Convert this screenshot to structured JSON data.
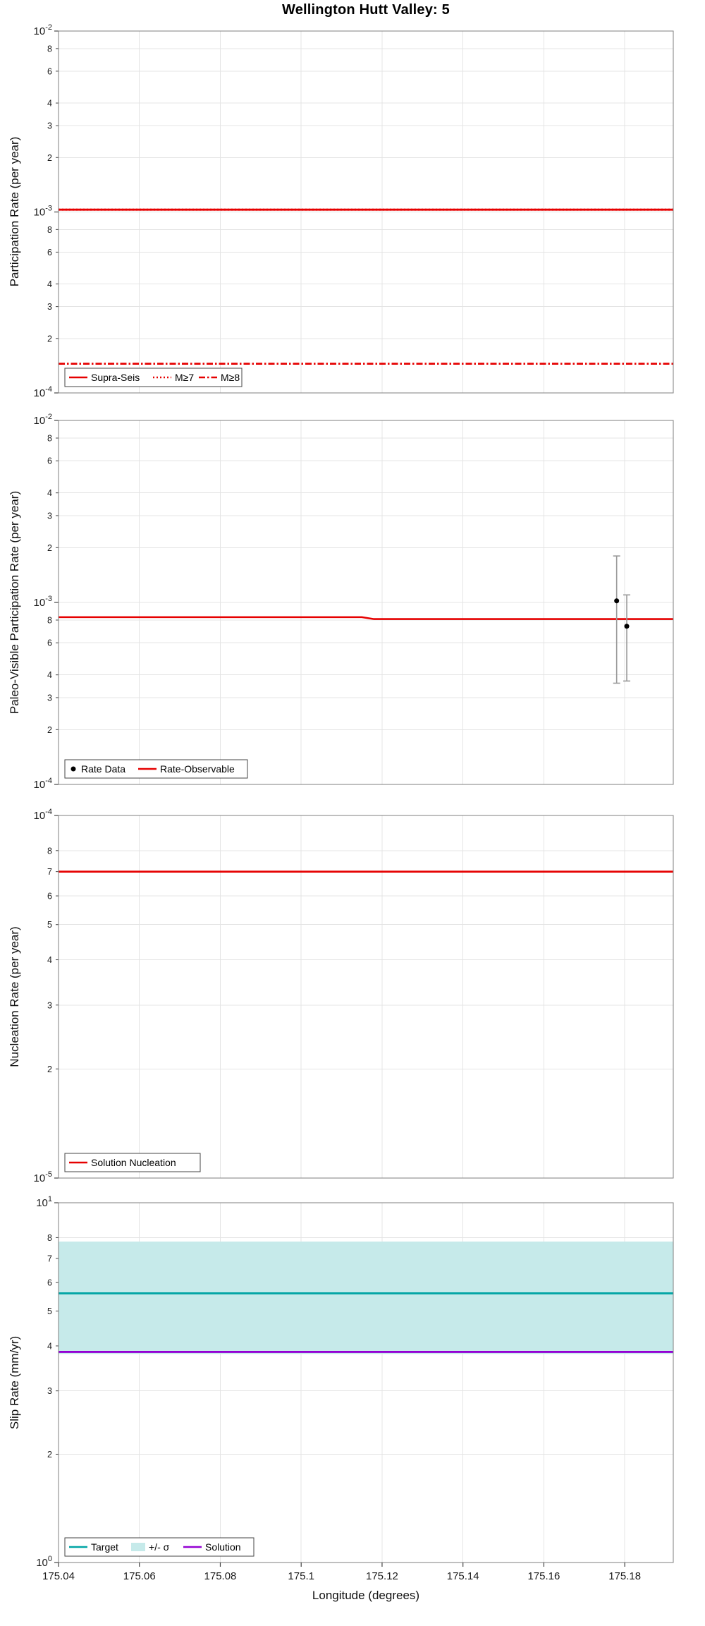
{
  "title": "Wellington Hutt Valley: 5",
  "xlabel": "Longitude (degrees)",
  "x_range": [
    175.04,
    175.192
  ],
  "x_ticks": [
    175.04,
    175.06,
    175.08,
    175.1,
    175.12,
    175.14,
    175.16,
    175.18
  ],
  "x_tick_labels": [
    "175.04",
    "175.06",
    "175.08",
    "175.1",
    "175.12",
    "175.14",
    "175.16",
    "175.18"
  ],
  "colors": {
    "red": "#e60000",
    "teal": "#00a5a5",
    "teal_band": "#c6eaea",
    "purple": "#9400d3",
    "black": "#000000",
    "gray": "#9a9a9a",
    "grid": "#e4e4e4",
    "axis": "#7f7f7f",
    "text": "#1a1a1a"
  },
  "chart_data": [
    {
      "type": "line",
      "ylabel": "Participation Rate (per year)",
      "y_log_range": [
        -4,
        -2
      ],
      "y_minor_ticks": [
        8,
        6,
        4,
        3,
        2
      ],
      "series": [
        {
          "name": "Supra-Seis",
          "color": "red",
          "dash": "solid",
          "value": 0.00103
        },
        {
          "name": "M≥7",
          "color": "red",
          "dash": "dotted",
          "value": 0.00103
        },
        {
          "name": "M≥8",
          "color": "red",
          "dash": "dashdot",
          "value": 0.000145
        }
      ],
      "legend": [
        {
          "label": "Supra-Seis",
          "swatch": "line",
          "color": "red",
          "dash": "solid"
        },
        {
          "label": "M≥7",
          "swatch": "line",
          "color": "red",
          "dash": "dotted"
        },
        {
          "label": "M≥8",
          "swatch": "line",
          "color": "red",
          "dash": "dashdot"
        }
      ]
    },
    {
      "type": "line+scatter",
      "ylabel": "Paleo-Visible Participation Rate (per year)",
      "y_log_range": [
        -4,
        -2
      ],
      "y_minor_ticks": [
        8,
        6,
        4,
        3,
        2
      ],
      "line_series": [
        {
          "name": "Rate-Observable",
          "color": "red",
          "dash": "solid",
          "points": [
            [
              175.04,
              0.00083
            ],
            [
              175.115,
              0.00083
            ],
            [
              175.118,
              0.00081
            ],
            [
              175.192,
              0.00081
            ]
          ]
        }
      ],
      "markers": [
        {
          "name": "Rate Data",
          "x": 175.178,
          "y": 0.00102,
          "y_lo": 0.00036,
          "y_hi": 0.0018
        },
        {
          "name": "Rate Data",
          "x": 175.1805,
          "y": 0.00074,
          "y_lo": 0.00037,
          "y_hi": 0.0011
        }
      ],
      "legend": [
        {
          "label": "Rate Data",
          "swatch": "marker",
          "color": "black"
        },
        {
          "label": "Rate-Observable",
          "swatch": "line",
          "color": "red",
          "dash": "solid"
        }
      ]
    },
    {
      "type": "line",
      "ylabel": "Nucleation Rate (per year)",
      "y_log_range": [
        -5,
        -4
      ],
      "y_minor_ticks": [
        8,
        7,
        6,
        5,
        4,
        3,
        2
      ],
      "series": [
        {
          "name": "Solution Nucleation",
          "color": "red",
          "dash": "solid",
          "value": 7e-05
        }
      ],
      "legend": [
        {
          "label": "Solution Nucleation",
          "swatch": "line",
          "color": "red",
          "dash": "solid"
        }
      ]
    },
    {
      "type": "line+band",
      "ylabel": "Slip Rate (mm/yr)",
      "y_log_range": [
        0,
        1
      ],
      "y_minor_ticks": [
        8,
        7,
        6,
        5,
        4,
        3,
        2
      ],
      "band": {
        "name": "+/- σ",
        "lo": 3.8,
        "hi": 7.8,
        "color": "teal_band"
      },
      "series": [
        {
          "name": "Target",
          "color": "teal",
          "dash": "solid",
          "value": 5.6
        },
        {
          "name": "Solution",
          "color": "purple",
          "dash": "solid",
          "value": 3.85
        }
      ],
      "legend": [
        {
          "label": "Target",
          "swatch": "line",
          "color": "teal",
          "dash": "solid"
        },
        {
          "label": "+/- σ",
          "swatch": "patch",
          "color": "teal_band"
        },
        {
          "label": "Solution",
          "swatch": "line",
          "color": "purple",
          "dash": "solid"
        }
      ]
    }
  ]
}
